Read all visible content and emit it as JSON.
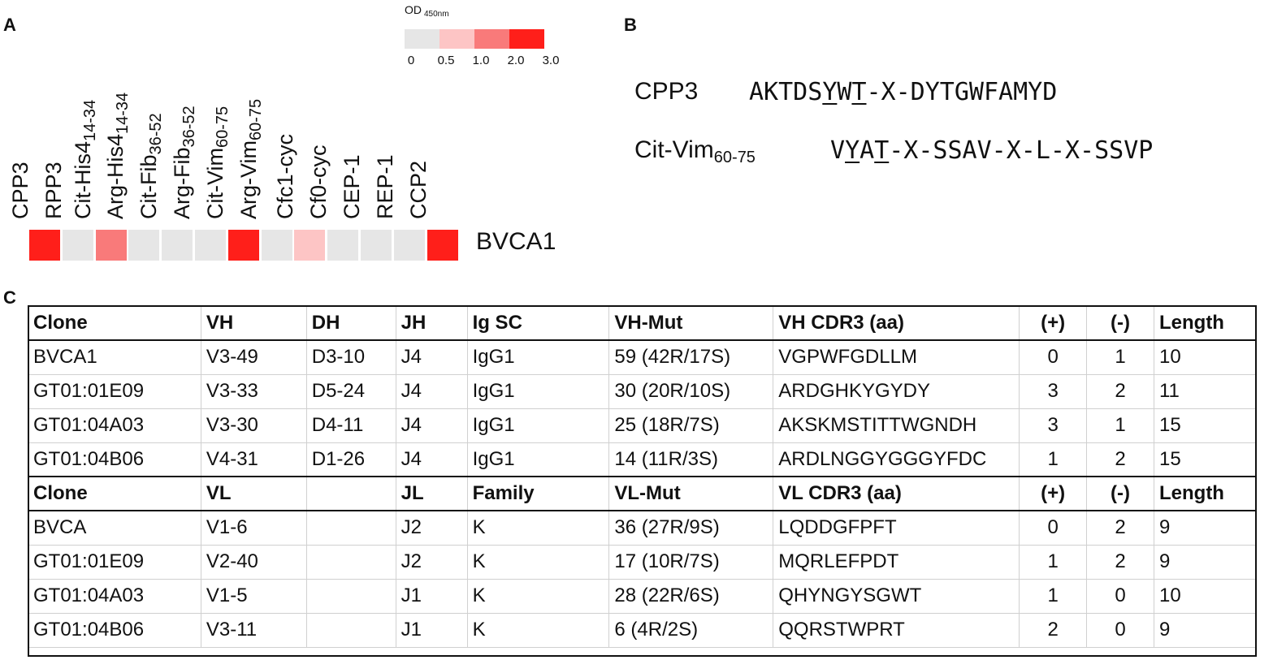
{
  "panels": {
    "a": "A",
    "b": "B",
    "c": "C"
  },
  "legend": {
    "title": "OD",
    "title_sub": "450nm",
    "colors": [
      "#e6e6e6",
      "#fdc5c5",
      "#f97a7a",
      "#ff1f1a"
    ],
    "ticks": [
      "0",
      "0.5",
      "1.0",
      "2.0",
      "3.0"
    ]
  },
  "heatmap": {
    "row_label": "BVCA1",
    "columns": [
      {
        "main": "CPP3",
        "sub": ""
      },
      {
        "main": "RPP3",
        "sub": ""
      },
      {
        "main": "Cit-His4",
        "sub": "14-34"
      },
      {
        "main": "Arg-His4",
        "sub": "14-34"
      },
      {
        "main": "Cit-Fib",
        "sub": "36-52"
      },
      {
        "main": "Arg-Fib",
        "sub": "36-52"
      },
      {
        "main": "Cit-Vim",
        "sub": "60-75"
      },
      {
        "main": "Arg-Vim",
        "sub": "60-75"
      },
      {
        "main": "Cfc1-cyc",
        "sub": ""
      },
      {
        "main": "Cf0-cyc",
        "sub": ""
      },
      {
        "main": "CEP-1",
        "sub": ""
      },
      {
        "main": "REP-1",
        "sub": ""
      },
      {
        "main": "CCP2",
        "sub": ""
      }
    ],
    "values": [
      3,
      0,
      1,
      0,
      0,
      0,
      3,
      0,
      0.5,
      0,
      0,
      0,
      3
    ]
  },
  "sequences": [
    {
      "name": "CPP3",
      "name_sub": "",
      "seq_parts": [
        [
          "AKTDS",
          false
        ],
        [
          "Y",
          true
        ],
        [
          "W",
          false
        ],
        [
          "T",
          true
        ],
        [
          "-X-DYTGWFAMYD",
          false
        ]
      ]
    },
    {
      "name": "Cit-Vim",
      "name_sub": "60-75",
      "seq_parts": [
        [
          "V",
          false
        ],
        [
          "Y",
          true
        ],
        [
          "A",
          false
        ],
        [
          "T",
          true
        ],
        [
          "-X-SSAV-X-L-X-SSVP",
          false
        ]
      ]
    }
  ],
  "table": {
    "heavy_header": [
      "Clone",
      "VH",
      "DH",
      "JH",
      "Ig SC",
      "VH-Mut",
      "VH CDR3 (aa)",
      "(+)",
      "(-)",
      "Length"
    ],
    "heavy_rows": [
      [
        "BVCA1",
        "V3-49",
        "D3-10",
        "J4",
        "IgG1",
        "59 (42R/17S)",
        "VGPWFGDLLM",
        "0",
        "1",
        "10"
      ],
      [
        "GT01:01E09",
        "V3-33",
        "D5-24",
        "J4",
        "IgG1",
        "30 (20R/10S)",
        "ARDGHKYGYDY",
        "3",
        "2",
        "11"
      ],
      [
        "GT01:04A03",
        "V3-30",
        "D4-11",
        "J4",
        "IgG1",
        "25 (18R/7S)",
        "AKSKMSTITTWGNDH",
        "3",
        "1",
        "15"
      ],
      [
        "GT01:04B06",
        "V4-31",
        "D1-26",
        "J4",
        "IgG1",
        "14 (11R/3S)",
        "ARDLNGGYGGGYFDC",
        "1",
        "2",
        "15"
      ]
    ],
    "light_header": [
      "Clone",
      "VL",
      "",
      "JL",
      "Family",
      "VL-Mut",
      "VL CDR3 (aa)",
      "(+)",
      "(-)",
      "Length"
    ],
    "light_rows": [
      [
        "BVCA",
        "V1-6",
        "",
        "J2",
        "K",
        "36 (27R/9S)",
        "LQDDGFPFT",
        "0",
        "2",
        "9"
      ],
      [
        "GT01:01E09",
        "V2-40",
        "",
        "J2",
        "K",
        "17 (10R/7S)",
        "MQRLEFPDT",
        "1",
        "2",
        "9"
      ],
      [
        "GT01:04A03",
        "V1-5",
        "",
        "J1",
        "K",
        "28 (22R/6S)",
        "QHYNGYSGWT",
        "1",
        "0",
        "10"
      ],
      [
        "GT01:04B06",
        "V3-11",
        "",
        "J1",
        "K",
        "6 (4R/2S)",
        "QQRSTWPRT",
        "2",
        "0",
        "9"
      ]
    ]
  }
}
